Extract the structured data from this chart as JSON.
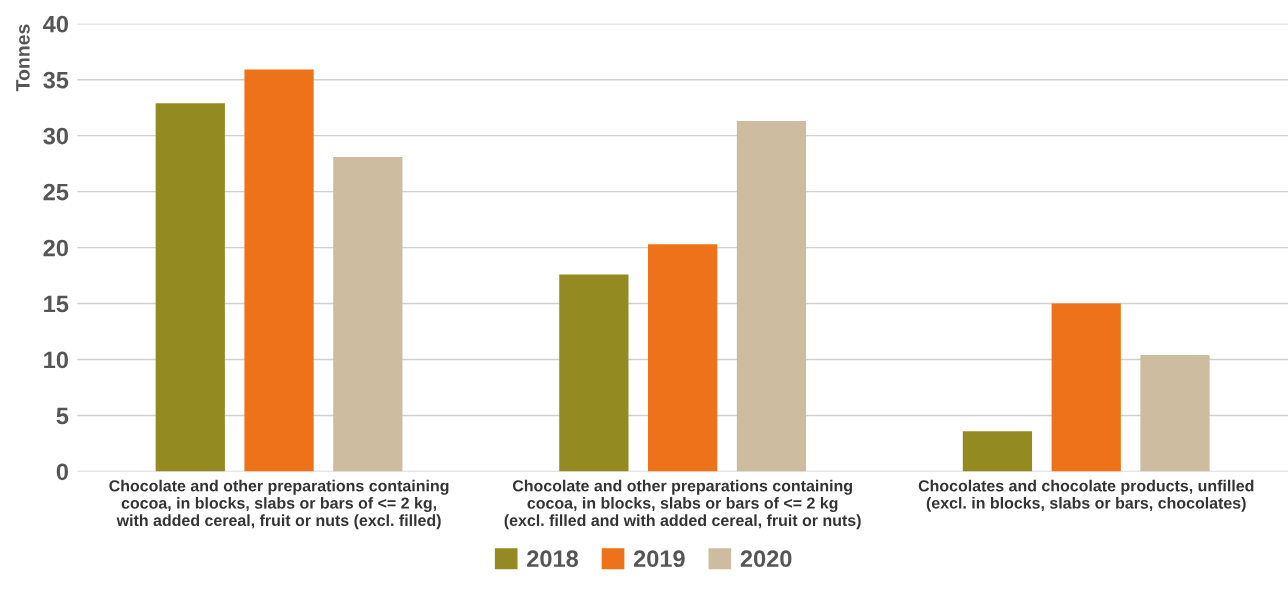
{
  "chart_data": {
    "type": "bar",
    "ylabel": "Tonnes",
    "categories": [
      "Chocolate and other preparations containing\ncocoa, in blocks, slabs or bars of <= 2 kg,\nwith added cereal, fruit or nuts (excl. filled)",
      "Chocolate and other preparations containing\ncocoa, in blocks, slabs or bars of <= 2 kg\n(excl. filled and with added cereal, fruit or nuts)",
      "Chocolates and chocolate products, unfilled\n(excl. in blocks, slabs or bars, chocolates)"
    ],
    "series": [
      {
        "name": "2018",
        "color": "#948a22",
        "values": [
          32.9,
          17.6,
          3.6
        ]
      },
      {
        "name": "2019",
        "color": "#ee7219",
        "values": [
          35.9,
          20.3,
          15.0
        ]
      },
      {
        "name": "2020",
        "color": "#cdbca0",
        "values": [
          28.1,
          31.3,
          10.4
        ]
      }
    ],
    "ylim": [
      0,
      40
    ],
    "yticks": [
      0,
      5,
      10,
      15,
      20,
      25,
      30,
      35,
      40
    ],
    "grid": "y",
    "legend": "bottom"
  }
}
